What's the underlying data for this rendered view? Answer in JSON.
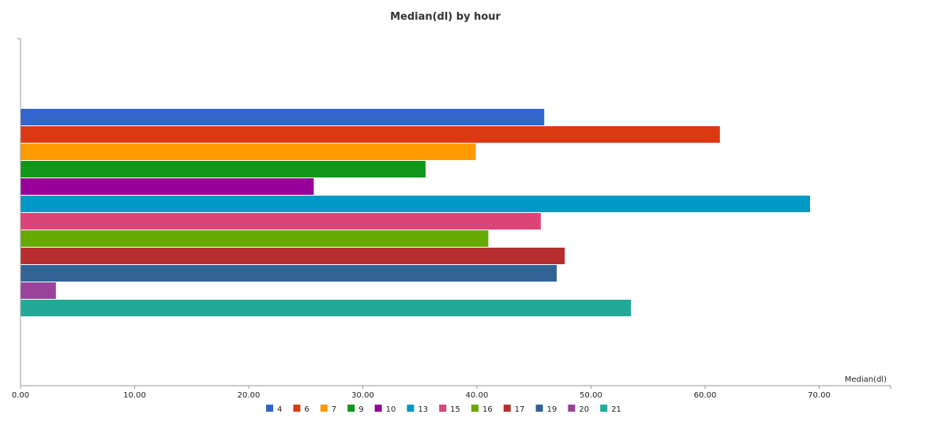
{
  "chart_data": {
    "type": "bar",
    "orientation": "horizontal",
    "title": "Median(dl) by hour",
    "xlabel": "Median(dl)",
    "ylabel": "",
    "xlim": [
      0,
      75
    ],
    "x_ticks": [
      "0.00",
      "10.00",
      "20.00",
      "30.00",
      "40.00",
      "50.00",
      "60.00",
      "70.00"
    ],
    "grid": false,
    "legend_position": "bottom",
    "series": [
      {
        "name": "4",
        "value": 45.9,
        "color": "#3366cc"
      },
      {
        "name": "6",
        "value": 61.3,
        "color": "#dc3912"
      },
      {
        "name": "7",
        "value": 39.9,
        "color": "#ff9900"
      },
      {
        "name": "9",
        "value": 35.5,
        "color": "#109618"
      },
      {
        "name": "10",
        "value": 25.7,
        "color": "#990099"
      },
      {
        "name": "13",
        "value": 69.2,
        "color": "#0099c6"
      },
      {
        "name": "15",
        "value": 45.6,
        "color": "#dd4477"
      },
      {
        "name": "16",
        "value": 41.0,
        "color": "#66aa00"
      },
      {
        "name": "17",
        "value": 47.7,
        "color": "#b82e2e"
      },
      {
        "name": "19",
        "value": 47.0,
        "color": "#316395"
      },
      {
        "name": "20",
        "value": 3.1,
        "color": "#994499"
      },
      {
        "name": "21",
        "value": 53.5,
        "color": "#22aa99"
      }
    ]
  }
}
